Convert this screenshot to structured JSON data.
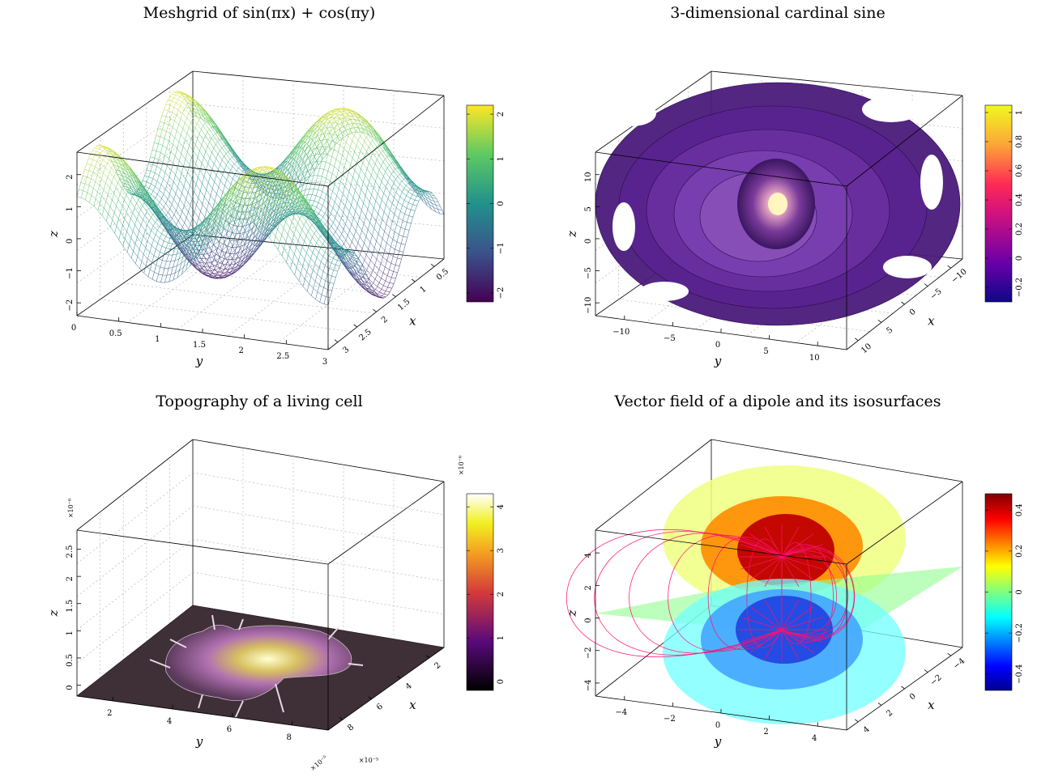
{
  "chart_data": [
    {
      "id": "p1",
      "type": "surface-3d",
      "title": "Meshgrid of sin(πx) + cos(πy)",
      "xlabel": "y",
      "ylabel": "x",
      "zlabel": "z",
      "function": "sin(pi*x) + cos(pi*y)",
      "x_ticks": [
        "0",
        "0.5",
        "1",
        "1.5",
        "2",
        "2.5",
        "3"
      ],
      "y_ticks": [
        "0.5",
        "1",
        "1.5",
        "2",
        "2.5",
        "3"
      ],
      "z_ticks": [
        "−2",
        "−1",
        "0",
        "1",
        "2"
      ],
      "xlim": [
        0,
        3
      ],
      "ylim": [
        0,
        3
      ],
      "zlim": [
        -2.2,
        2.2
      ],
      "colormap": "viridis",
      "colorbar_ticks": [
        "−2",
        "−1",
        "0",
        "1",
        "2"
      ],
      "colorbar_range": [
        -2.2,
        2.2
      ],
      "grid": true
    },
    {
      "id": "p2",
      "type": "isosurface-3d",
      "title": "3-dimensional cardinal sine",
      "xlabel": "y",
      "ylabel": "x",
      "zlabel": "z",
      "x_ticks": [
        "−10",
        "−5",
        "0",
        "5",
        "10"
      ],
      "y_ticks": [
        "−10",
        "−5",
        "0",
        "5",
        "10"
      ],
      "z_ticks": [
        "−10",
        "−5",
        "0",
        "5",
        "10"
      ],
      "xlim": [
        -10,
        10
      ],
      "ylim": [
        -10,
        10
      ],
      "zlim": [
        -10,
        10
      ],
      "colormap": "plasma",
      "colorbar_ticks": [
        "−0.2",
        "0",
        "0.2",
        "0.4",
        "0.6",
        "0.8",
        "1"
      ],
      "colorbar_range": [
        -0.3,
        1.05
      ],
      "grid": true
    },
    {
      "id": "p3",
      "type": "surface-3d",
      "title": "Topography of a living cell",
      "xlabel": "y",
      "ylabel": "x",
      "zlabel": "z",
      "x_ticks": [
        "2",
        "4",
        "6",
        "8"
      ],
      "y_ticks": [
        "2",
        "4",
        "6",
        "8"
      ],
      "z_ticks": [
        "0",
        "0.5",
        "1",
        "1.5",
        "2",
        "2.5"
      ],
      "x_multiplier": "×10⁻⁵",
      "y_multiplier": "×10⁻⁵",
      "z_multiplier": "×10⁻⁶",
      "colorbar_multiplier": "×10⁻⁶",
      "colormap": "gnuplot",
      "colorbar_ticks": [
        "0",
        "1",
        "2",
        "3",
        "4"
      ],
      "colorbar_range": [
        -0.2,
        4.3
      ],
      "grid": true
    },
    {
      "id": "p4",
      "type": "vector-field-3d",
      "title": "Vector field of a dipole and its isosurfaces",
      "xlabel": "y",
      "ylabel": "x",
      "zlabel": "z",
      "x_ticks": [
        "−4",
        "−2",
        "0",
        "2",
        "4"
      ],
      "y_ticks": [
        "−4",
        "−2",
        "0",
        "2",
        "4"
      ],
      "z_ticks": [
        "−4",
        "−2",
        "0",
        "2",
        "4"
      ],
      "xlim": [
        -5,
        5
      ],
      "ylim": [
        -5,
        5
      ],
      "zlim": [
        -5,
        5
      ],
      "colormap": "jet",
      "colorbar_ticks": [
        "−0.4",
        "−0.2",
        "0",
        "0.2",
        "0.4"
      ],
      "colorbar_range": [
        -0.48,
        0.48
      ],
      "isosurface_levels": [
        -0.4,
        -0.25,
        -0.1,
        0.1,
        0.25,
        0.4
      ],
      "grid": false
    }
  ]
}
